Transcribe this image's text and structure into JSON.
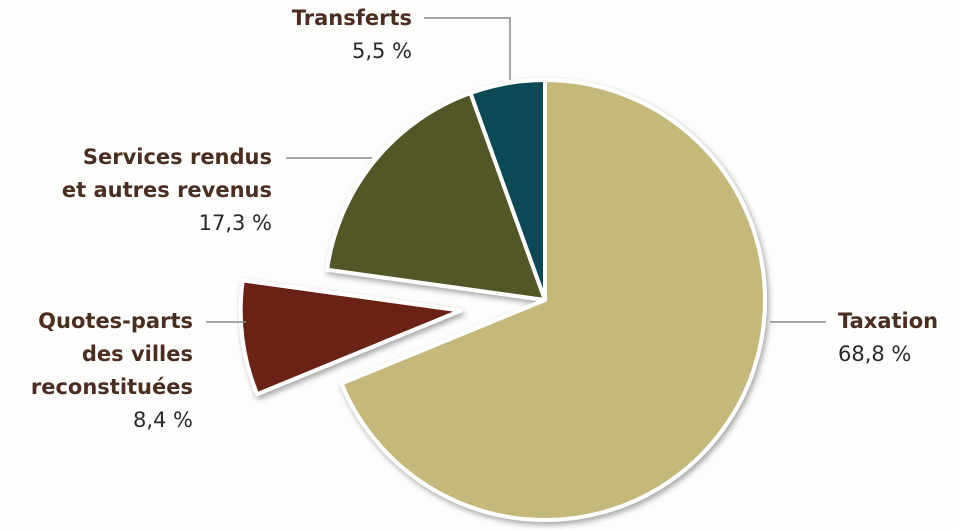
{
  "chart_data": {
    "type": "pie",
    "categories": [
      "Taxation",
      "Quotes-parts\ndes villes\nreconstituées",
      "Services rendus\net autres revenus",
      "Transferts"
    ],
    "values": [
      68.8,
      8.4,
      17.3,
      5.5
    ],
    "value_labels": [
      "68,8 %",
      "8,4 %",
      "17,3 %",
      "5,5 %"
    ],
    "colors": [
      "#c4b87a",
      "#6b2414",
      "#525626",
      "#0f4a55"
    ],
    "explode": [
      false,
      true,
      false,
      false
    ]
  }
}
